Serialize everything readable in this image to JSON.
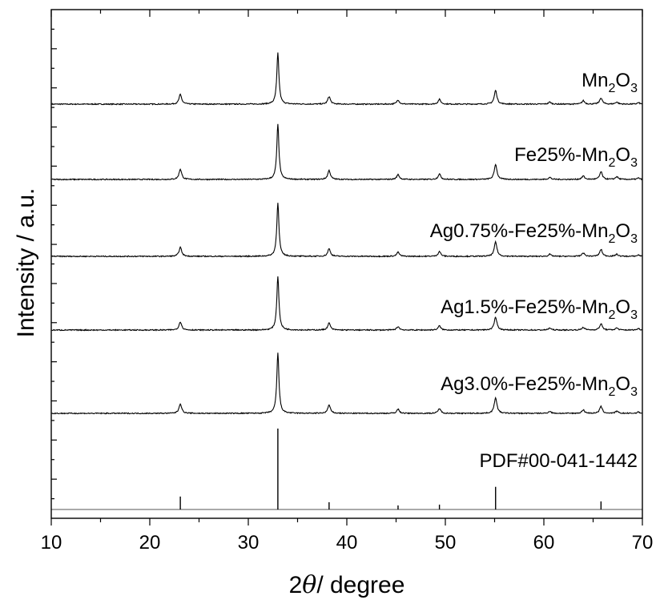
{
  "chart_data": {
    "type": "line",
    "title": "",
    "xlabel_prefix": "2",
    "xlabel_symbol": "θ",
    "xlabel_suffix": "/ degree",
    "ylabel": "Intensity / a.u.",
    "xlim": [
      10,
      70
    ],
    "xticks": [
      10,
      20,
      30,
      40,
      50,
      60,
      70
    ],
    "grid": false,
    "legend": "inline-right",
    "series": [
      {
        "name_main": "Mn",
        "name_parts": [
          [
            "Mn",
            ""
          ],
          [
            "2",
            "sub"
          ],
          [
            "O",
            ""
          ],
          [
            "3",
            "sub"
          ]
        ],
        "peaks": [
          [
            23.1,
            14
          ],
          [
            33.0,
            74
          ],
          [
            38.2,
            11
          ],
          [
            45.2,
            6
          ],
          [
            49.4,
            7
          ],
          [
            55.1,
            20
          ],
          [
            60.6,
            3
          ],
          [
            64.0,
            5
          ],
          [
            65.8,
            9
          ],
          [
            67.4,
            3
          ],
          [
            69.6,
            2
          ]
        ]
      },
      {
        "name_main": "Fe25%-Mn",
        "name_parts": [
          [
            "Fe25%-Mn",
            ""
          ],
          [
            "2",
            "sub"
          ],
          [
            "O",
            ""
          ],
          [
            "3",
            "sub"
          ]
        ],
        "peaks": [
          [
            23.1,
            15
          ],
          [
            33.0,
            80
          ],
          [
            38.2,
            13
          ],
          [
            45.2,
            7
          ],
          [
            49.4,
            8
          ],
          [
            55.1,
            22
          ],
          [
            60.6,
            3
          ],
          [
            64.0,
            5
          ],
          [
            65.8,
            11
          ],
          [
            67.4,
            4
          ],
          [
            69.6,
            2
          ]
        ]
      },
      {
        "name_main": "Ag0.75%-Fe25%-Mn",
        "name_parts": [
          [
            "Ag0.75%-Fe25%-Mn",
            ""
          ],
          [
            "2",
            "sub"
          ],
          [
            "O",
            ""
          ],
          [
            "3",
            "sub"
          ]
        ],
        "peaks": [
          [
            23.1,
            13
          ],
          [
            33.0,
            78
          ],
          [
            38.2,
            11
          ],
          [
            45.2,
            6
          ],
          [
            49.4,
            7
          ],
          [
            55.1,
            21
          ],
          [
            60.6,
            3
          ],
          [
            64.0,
            5
          ],
          [
            65.8,
            10
          ],
          [
            67.4,
            3
          ],
          [
            69.6,
            2
          ]
        ]
      },
      {
        "name_main": "Ag1.5%-Fe25%-Mn",
        "name_parts": [
          [
            "Ag1.5%-Fe25%-Mn",
            ""
          ],
          [
            "2",
            "sub"
          ],
          [
            "O",
            ""
          ],
          [
            "3",
            "sub"
          ]
        ],
        "peaks": [
          [
            23.1,
            12
          ],
          [
            33.0,
            78
          ],
          [
            38.2,
            10
          ],
          [
            45.2,
            5
          ],
          [
            49.4,
            6
          ],
          [
            55.1,
            19
          ],
          [
            60.6,
            3
          ],
          [
            64.0,
            4
          ],
          [
            65.8,
            9
          ],
          [
            67.4,
            3
          ],
          [
            69.6,
            2
          ]
        ]
      },
      {
        "name_main": "Ag3.0%-Fe25%-Mn",
        "name_parts": [
          [
            "Ag3.0%-Fe25%-Mn",
            ""
          ],
          [
            "2",
            "sub"
          ],
          [
            "O",
            ""
          ],
          [
            "3",
            "sub"
          ]
        ],
        "peaks": [
          [
            23.1,
            14
          ],
          [
            33.0,
            88
          ],
          [
            38.2,
            12
          ],
          [
            45.2,
            6
          ],
          [
            49.4,
            7
          ],
          [
            55.1,
            23
          ],
          [
            60.6,
            3
          ],
          [
            64.0,
            5
          ],
          [
            65.8,
            10
          ],
          [
            67.4,
            3
          ],
          [
            69.6,
            2
          ]
        ]
      }
    ],
    "reference": {
      "name": "PDF#00-041-1442",
      "lines": [
        [
          23.1,
          16
        ],
        [
          33.0,
          100
        ],
        [
          38.2,
          9
        ],
        [
          45.2,
          5
        ],
        [
          49.4,
          6
        ],
        [
          55.1,
          28
        ],
        [
          65.8,
          10
        ]
      ]
    }
  }
}
